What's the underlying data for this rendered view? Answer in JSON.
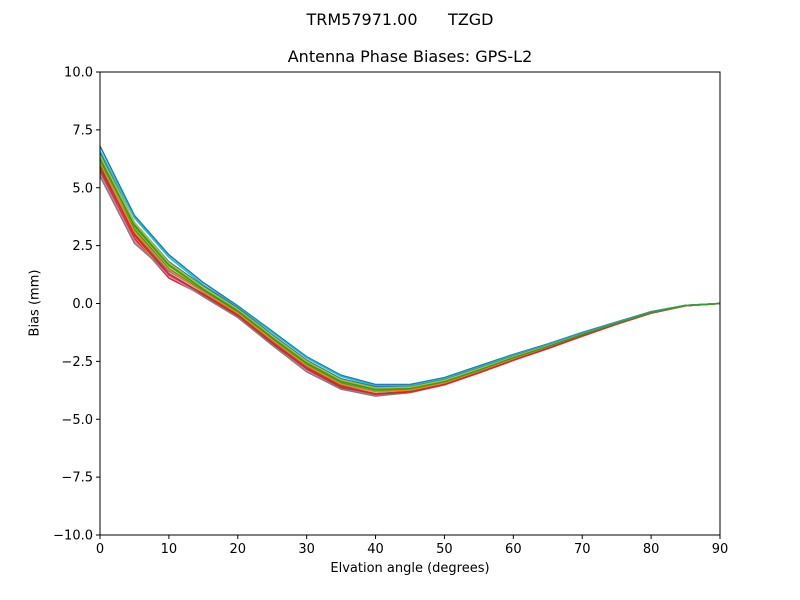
{
  "figure": {
    "suptitle": "TRM57971.00      TZGD"
  },
  "chart_data": {
    "type": "line",
    "title": "Antenna Phase Biases: GPS-L2",
    "xlabel": "Elvation angle (degrees)",
    "ylabel": "Bias (mm)",
    "xlim": [
      0,
      90
    ],
    "ylim": [
      -10,
      10
    ],
    "xticks": [
      0,
      10,
      20,
      30,
      40,
      50,
      60,
      70,
      80,
      90
    ],
    "xtick_labels": [
      "0",
      "10",
      "20",
      "30",
      "40",
      "50",
      "60",
      "70",
      "80",
      "90"
    ],
    "yticks": [
      10,
      7.5,
      5,
      2.5,
      0,
      -2.5,
      -5,
      -7.5,
      -10
    ],
    "ytick_labels": [
      "10.0",
      "7.5",
      "5.0",
      "2.5",
      "0.0",
      "−2.5",
      "−5.0",
      "−7.5",
      "−10.0"
    ],
    "grid": false,
    "legend": "none",
    "x": [
      0,
      5,
      10,
      15,
      20,
      25,
      30,
      35,
      40,
      45,
      50,
      55,
      60,
      65,
      70,
      75,
      80,
      85,
      90
    ],
    "series": [
      {
        "color": "#1f77b4",
        "values": [
          6.8,
          3.8,
          2.1,
          0.9,
          -0.1,
          -1.2,
          -2.3,
          -3.1,
          -3.5,
          -3.5,
          -3.2,
          -2.7,
          -2.2,
          -1.75,
          -1.25,
          -0.8,
          -0.35,
          -0.08,
          0.0
        ]
      },
      {
        "color": "#ff7f0e",
        "values": [
          5.9,
          2.9,
          1.2,
          0.4,
          -0.5,
          -1.7,
          -2.8,
          -3.6,
          -3.9,
          -3.8,
          -3.5,
          -3.0,
          -2.45,
          -1.95,
          -1.42,
          -0.9,
          -0.42,
          -0.1,
          0.0
        ]
      },
      {
        "color": "#2ca02c",
        "values": [
          6.3,
          3.4,
          1.7,
          0.6,
          -0.3,
          -1.45,
          -2.55,
          -3.35,
          -3.7,
          -3.65,
          -3.35,
          -2.85,
          -2.32,
          -1.85,
          -1.33,
          -0.84,
          -0.38,
          -0.09,
          0.0
        ]
      },
      {
        "color": "#d62728",
        "values": [
          5.7,
          2.8,
          1.1,
          0.35,
          -0.55,
          -1.75,
          -2.85,
          -3.65,
          -3.95,
          -3.85,
          -3.5,
          -3.0,
          -2.45,
          -1.95,
          -1.4,
          -0.88,
          -0.4,
          -0.1,
          0.0
        ]
      },
      {
        "color": "#9467bd",
        "values": [
          6.0,
          3.0,
          1.4,
          0.5,
          -0.4,
          -1.6,
          -2.7,
          -3.5,
          -3.8,
          -3.75,
          -3.45,
          -2.95,
          -2.4,
          -1.9,
          -1.38,
          -0.87,
          -0.4,
          -0.1,
          0.0
        ]
      },
      {
        "color": "#8c564b",
        "values": [
          5.8,
          3.0,
          1.3,
          0.4,
          -0.45,
          -1.65,
          -2.75,
          -3.55,
          -3.9,
          -3.8,
          -3.5,
          -2.98,
          -2.44,
          -1.93,
          -1.4,
          -0.89,
          -0.41,
          -0.1,
          0.0
        ]
      },
      {
        "color": "#e377c2",
        "values": [
          5.6,
          2.7,
          1.2,
          0.3,
          -0.6,
          -1.8,
          -2.9,
          -3.7,
          -3.95,
          -3.85,
          -3.52,
          -3.0,
          -2.46,
          -1.95,
          -1.41,
          -0.9,
          -0.42,
          -0.1,
          0.0
        ]
      },
      {
        "color": "#7f7f7f",
        "values": [
          5.5,
          2.6,
          1.3,
          0.3,
          -0.6,
          -1.8,
          -2.95,
          -3.7,
          -4.0,
          -3.85,
          -3.5,
          -3.0,
          -2.45,
          -1.94,
          -1.4,
          -0.89,
          -0.41,
          -0.1,
          0.0
        ]
      },
      {
        "color": "#bcbd22",
        "values": [
          6.2,
          3.3,
          1.6,
          0.6,
          -0.35,
          -1.5,
          -2.6,
          -3.4,
          -3.75,
          -3.7,
          -3.4,
          -2.9,
          -2.36,
          -1.87,
          -1.35,
          -0.86,
          -0.39,
          -0.09,
          0.0
        ]
      },
      {
        "color": "#17becf",
        "values": [
          6.6,
          3.7,
          2.0,
          0.8,
          -0.15,
          -1.25,
          -2.35,
          -3.15,
          -3.55,
          -3.55,
          -3.25,
          -2.75,
          -2.24,
          -1.78,
          -1.28,
          -0.81,
          -0.36,
          -0.08,
          0.0
        ]
      },
      {
        "color": "#1f77b4",
        "values": [
          6.5,
          3.5,
          1.8,
          0.75,
          -0.2,
          -1.35,
          -2.45,
          -3.25,
          -3.6,
          -3.6,
          -3.3,
          -2.8,
          -2.28,
          -1.81,
          -1.3,
          -0.82,
          -0.37,
          -0.08,
          0.0
        ]
      },
      {
        "color": "#2ca02c",
        "values": [
          6.0,
          3.2,
          1.5,
          0.55,
          -0.38,
          -1.55,
          -2.65,
          -3.45,
          -3.8,
          -3.72,
          -3.42,
          -2.92,
          -2.38,
          -1.89,
          -1.37,
          -0.86,
          -0.39,
          -0.09,
          0.0
        ]
      },
      {
        "color": "#ff7f0e",
        "values": [
          6.1,
          3.1,
          1.45,
          0.5,
          -0.42,
          -1.58,
          -2.68,
          -3.48,
          -3.82,
          -3.74,
          -3.44,
          -2.94,
          -2.4,
          -1.9,
          -1.38,
          -0.87,
          -0.4,
          -0.1,
          0.0
        ]
      },
      {
        "color": "#d62728",
        "values": [
          5.9,
          2.95,
          1.25,
          0.42,
          -0.5,
          -1.7,
          -2.8,
          -3.6,
          -3.92,
          -3.82,
          -3.5,
          -2.99,
          -2.45,
          -1.94,
          -1.4,
          -0.89,
          -0.41,
          -0.1,
          0.0
        ]
      },
      {
        "color": "#bcbd22",
        "values": [
          6.4,
          3.5,
          1.75,
          0.7,
          -0.25,
          -1.4,
          -2.5,
          -3.3,
          -3.65,
          -3.62,
          -3.32,
          -2.82,
          -2.3,
          -1.83,
          -1.32,
          -0.84,
          -0.38,
          -0.09,
          0.0
        ]
      },
      {
        "color": "#2ca02c",
        "values": [
          6.2,
          3.35,
          1.65,
          0.62,
          -0.32,
          -1.48,
          -2.58,
          -3.38,
          -3.72,
          -3.68,
          -3.38,
          -2.88,
          -2.34,
          -1.86,
          -1.34,
          -0.85,
          -0.38,
          -0.09,
          0.0
        ]
      }
    ]
  }
}
